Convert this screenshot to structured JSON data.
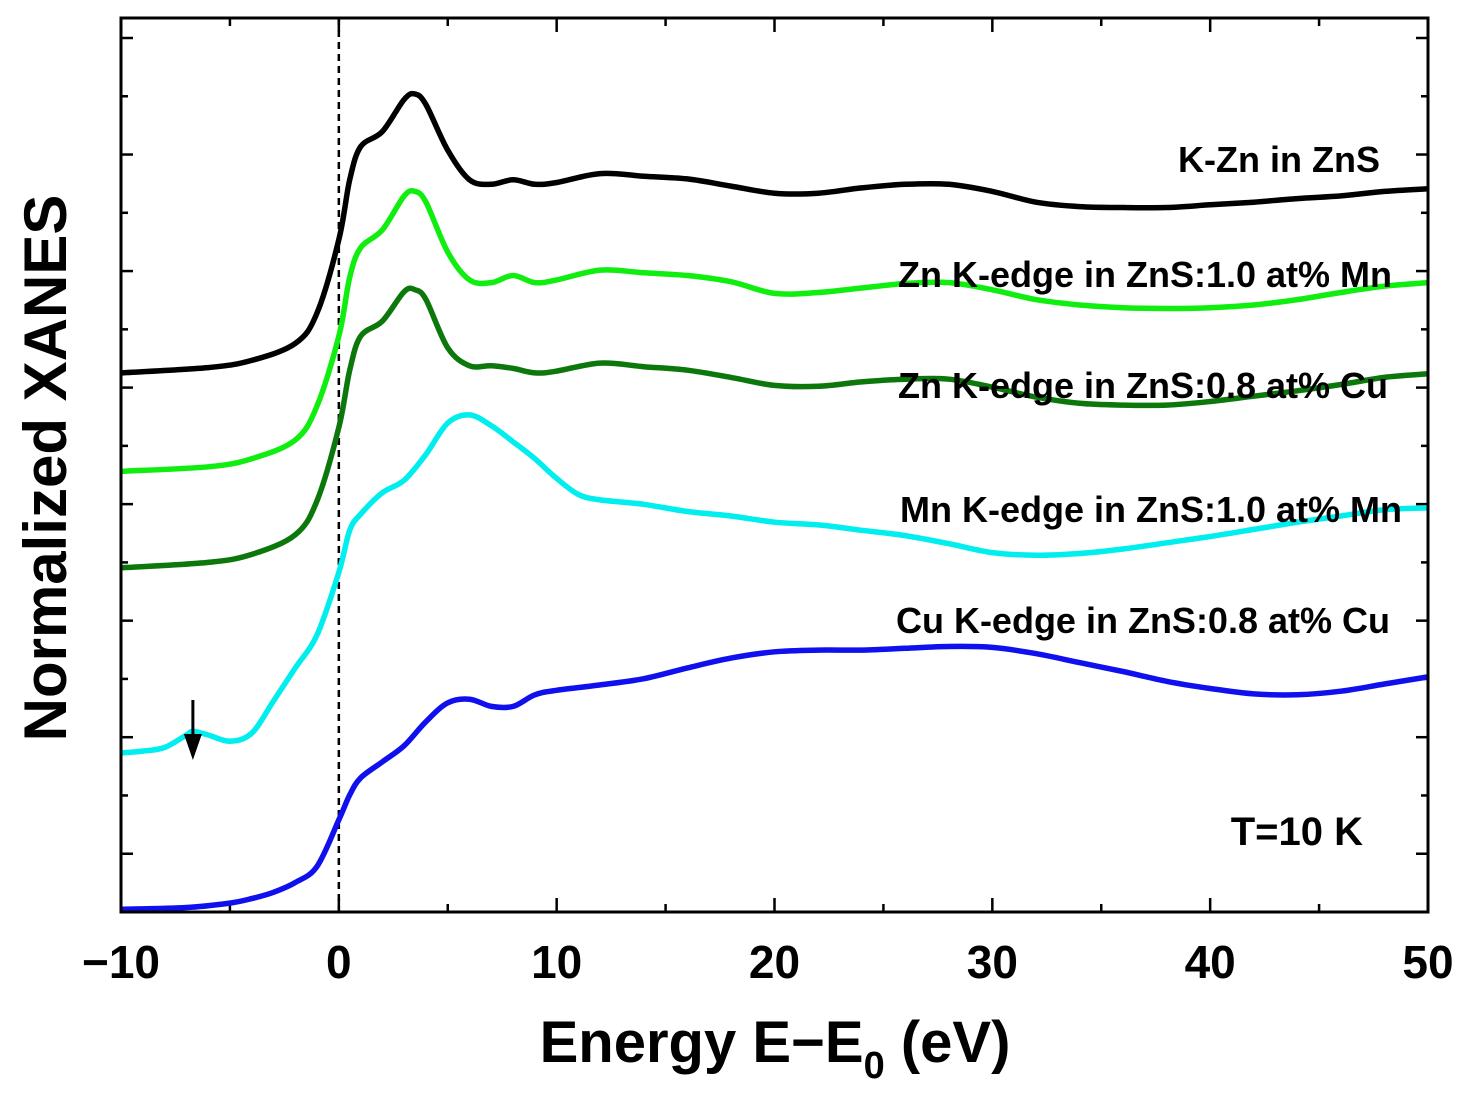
{
  "chart_data": {
    "type": "line",
    "title": "",
    "xlabel_main": "Energy E−E",
    "xlabel_sub": "0",
    "xlabel_unit": " (eV)",
    "ylabel": "Normalized XANES",
    "xlim": [
      -10,
      50
    ],
    "ylim": [
      0,
      100
    ],
    "x_ticks": [
      {
        "value": -10,
        "label": "−10"
      },
      {
        "value": 0,
        "label": "0"
      },
      {
        "value": 10,
        "label": "10"
      },
      {
        "value": 20,
        "label": "20"
      },
      {
        "value": 30,
        "label": "30"
      },
      {
        "value": 40,
        "label": "40"
      },
      {
        "value": 50,
        "label": "50"
      }
    ],
    "reference_line_x": 0,
    "annotation": "T=10 K",
    "arrow_marker_x": -6.7,
    "series": [
      {
        "name": "K-Zn in ZnS",
        "color": "#000000",
        "points": [
          [
            -10,
            60.3
          ],
          [
            -6,
            60.9
          ],
          [
            -4,
            61.7
          ],
          [
            -2,
            63.6
          ],
          [
            -1,
            67.0
          ],
          [
            0,
            75.2
          ],
          [
            0.5,
            81.9
          ],
          [
            1,
            85.6
          ],
          [
            2,
            87.3
          ],
          [
            3,
            90.9
          ],
          [
            3.5,
            91.5
          ],
          [
            4,
            90.3
          ],
          [
            5,
            85.2
          ],
          [
            6,
            81.9
          ],
          [
            7,
            81.4
          ],
          [
            8,
            81.9
          ],
          [
            9,
            81.4
          ],
          [
            10,
            81.6
          ],
          [
            12,
            82.6
          ],
          [
            14,
            82.3
          ],
          [
            16,
            82.0
          ],
          [
            18,
            81.2
          ],
          [
            20,
            80.4
          ],
          [
            22,
            80.4
          ],
          [
            24,
            81.0
          ],
          [
            26,
            81.4
          ],
          [
            28,
            81.4
          ],
          [
            30,
            80.6
          ],
          [
            32,
            79.4
          ],
          [
            34,
            78.9
          ],
          [
            36,
            78.8
          ],
          [
            38,
            78.8
          ],
          [
            40,
            79.1
          ],
          [
            42,
            79.4
          ],
          [
            44,
            79.8
          ],
          [
            46,
            80.1
          ],
          [
            48,
            80.6
          ],
          [
            50,
            80.9
          ]
        ]
      },
      {
        "name": "Zn K-edge in ZnS:1.0 at% Mn",
        "color": "#10ee10",
        "points": [
          [
            -10,
            49.3
          ],
          [
            -6,
            49.8
          ],
          [
            -4,
            50.7
          ],
          [
            -2,
            52.8
          ],
          [
            -1,
            56.6
          ],
          [
            0,
            64.4
          ],
          [
            0.5,
            71.0
          ],
          [
            1,
            74.3
          ],
          [
            2,
            76.3
          ],
          [
            3,
            80.1
          ],
          [
            3.5,
            80.6
          ],
          [
            4,
            79.4
          ],
          [
            5,
            73.8
          ],
          [
            6,
            70.7
          ],
          [
            7,
            70.4
          ],
          [
            8,
            71.2
          ],
          [
            9,
            70.4
          ],
          [
            10,
            70.7
          ],
          [
            12,
            71.8
          ],
          [
            14,
            71.5
          ],
          [
            16,
            71.2
          ],
          [
            18,
            70.5
          ],
          [
            20,
            69.2
          ],
          [
            22,
            69.3
          ],
          [
            24,
            69.8
          ],
          [
            26,
            70.3
          ],
          [
            28,
            70.4
          ],
          [
            30,
            69.6
          ],
          [
            32,
            68.5
          ],
          [
            34,
            67.9
          ],
          [
            36,
            67.6
          ],
          [
            38,
            67.5
          ],
          [
            40,
            67.6
          ],
          [
            42,
            67.9
          ],
          [
            44,
            68.5
          ],
          [
            46,
            69.3
          ],
          [
            48,
            70.0
          ],
          [
            50,
            70.4
          ]
        ]
      },
      {
        "name": "Zn K-edge in ZnS:0.8 at% Cu",
        "color": "#0c780c",
        "points": [
          [
            -10,
            38.5
          ],
          [
            -6,
            39.1
          ],
          [
            -4,
            40.0
          ],
          [
            -2,
            42.2
          ],
          [
            -1,
            46.0
          ],
          [
            0,
            54.2
          ],
          [
            0.5,
            60.6
          ],
          [
            1,
            64.4
          ],
          [
            2,
            66.1
          ],
          [
            3,
            69.4
          ],
          [
            3.5,
            69.6
          ],
          [
            4,
            68.5
          ],
          [
            5,
            63.1
          ],
          [
            6,
            61.1
          ],
          [
            7,
            61.1
          ],
          [
            8,
            60.8
          ],
          [
            9,
            60.3
          ],
          [
            10,
            60.5
          ],
          [
            12,
            61.4
          ],
          [
            14,
            61.0
          ],
          [
            16,
            60.6
          ],
          [
            18,
            59.8
          ],
          [
            20,
            58.9
          ],
          [
            22,
            58.8
          ],
          [
            24,
            59.3
          ],
          [
            26,
            59.6
          ],
          [
            28,
            59.6
          ],
          [
            30,
            58.7
          ],
          [
            32,
            57.6
          ],
          [
            34,
            56.9
          ],
          [
            36,
            56.7
          ],
          [
            38,
            56.7
          ],
          [
            40,
            57.1
          ],
          [
            42,
            57.7
          ],
          [
            44,
            58.3
          ],
          [
            46,
            59.0
          ],
          [
            48,
            59.8
          ],
          [
            50,
            60.2
          ]
        ]
      },
      {
        "name": "Mn K-edge in ZnS:1.0 at% Mn",
        "color": "#00eeee",
        "points": [
          [
            -10,
            17.8
          ],
          [
            -9,
            18.0
          ],
          [
            -8,
            18.4
          ],
          [
            -7,
            19.8
          ],
          [
            -6.7,
            20.2
          ],
          [
            -6,
            19.8
          ],
          [
            -5,
            19.1
          ],
          [
            -4,
            20.0
          ],
          [
            -3,
            23.6
          ],
          [
            -2,
            27.3
          ],
          [
            -1,
            31.0
          ],
          [
            0,
            38.0
          ],
          [
            0.5,
            42.7
          ],
          [
            1,
            44.5
          ],
          [
            2,
            46.9
          ],
          [
            3,
            48.3
          ],
          [
            4,
            51.2
          ],
          [
            5,
            54.7
          ],
          [
            6,
            55.6
          ],
          [
            7,
            54.4
          ],
          [
            8,
            52.6
          ],
          [
            9,
            50.7
          ],
          [
            10,
            48.5
          ],
          [
            11,
            46.7
          ],
          [
            12,
            46.1
          ],
          [
            14,
            45.6
          ],
          [
            16,
            44.8
          ],
          [
            18,
            44.3
          ],
          [
            20,
            43.6
          ],
          [
            22,
            43.3
          ],
          [
            24,
            42.7
          ],
          [
            26,
            42.1
          ],
          [
            28,
            41.2
          ],
          [
            30,
            40.2
          ],
          [
            32,
            39.9
          ],
          [
            34,
            40.1
          ],
          [
            36,
            40.6
          ],
          [
            38,
            41.3
          ],
          [
            40,
            42.0
          ],
          [
            42,
            42.8
          ],
          [
            44,
            43.6
          ],
          [
            46,
            44.3
          ],
          [
            48,
            45.0
          ],
          [
            50,
            45.2
          ]
        ]
      },
      {
        "name": "Cu K-edge in ZnS:0.8 at% Cu",
        "color": "#1010ee",
        "points": [
          [
            -10,
            0.3
          ],
          [
            -7,
            0.5
          ],
          [
            -5,
            1.0
          ],
          [
            -4,
            1.5
          ],
          [
            -3,
            2.2
          ],
          [
            -2,
            3.3
          ],
          [
            -1,
            5.1
          ],
          [
            0,
            10.3
          ],
          [
            0.5,
            13.1
          ],
          [
            1,
            15.0
          ],
          [
            2,
            16.8
          ],
          [
            3,
            18.6
          ],
          [
            4,
            21.3
          ],
          [
            5,
            23.4
          ],
          [
            6,
            23.8
          ],
          [
            7,
            23.0
          ],
          [
            8,
            23.0
          ],
          [
            9,
            24.3
          ],
          [
            10,
            24.8
          ],
          [
            12,
            25.4
          ],
          [
            14,
            26.1
          ],
          [
            16,
            27.3
          ],
          [
            18,
            28.4
          ],
          [
            20,
            29.1
          ],
          [
            22,
            29.3
          ],
          [
            24,
            29.3
          ],
          [
            26,
            29.5
          ],
          [
            28,
            29.7
          ],
          [
            30,
            29.6
          ],
          [
            32,
            28.9
          ],
          [
            34,
            27.9
          ],
          [
            36,
            26.9
          ],
          [
            38,
            25.8
          ],
          [
            40,
            25.0
          ],
          [
            42,
            24.4
          ],
          [
            44,
            24.3
          ],
          [
            46,
            24.7
          ],
          [
            48,
            25.5
          ],
          [
            50,
            26.3
          ]
        ]
      }
    ]
  }
}
